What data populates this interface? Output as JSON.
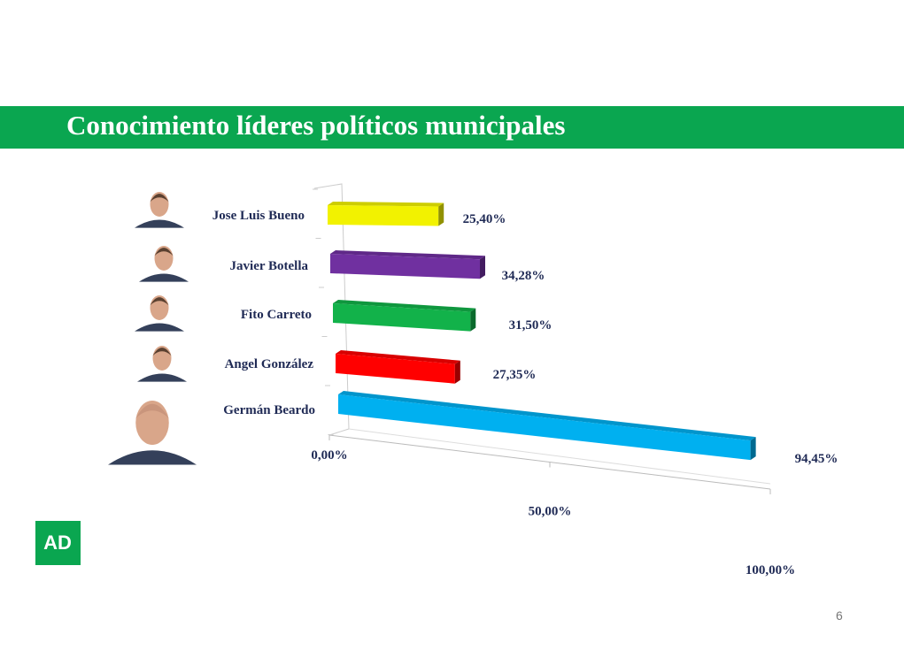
{
  "title": "Conocimiento líderes políticos municipales",
  "page_number": "6",
  "logo_text": "AD",
  "chart_data": {
    "type": "bar",
    "orientation": "horizontal-3d",
    "title": "Conocimiento líderes políticos municipales",
    "categories": [
      "Jose Luis Bueno",
      "Javier Botella",
      "Fito Carreto",
      "Angel González",
      "Germán Beardo"
    ],
    "values": [
      25.4,
      34.28,
      31.5,
      27.35,
      94.45
    ],
    "value_labels": [
      "25,40%",
      "34,28%",
      "31,50%",
      "27,35%",
      "94,45%"
    ],
    "colors": [
      "#f2f200",
      "#7030a0",
      "#12b24a",
      "#ff0000",
      "#00b0f0"
    ],
    "xlim": [
      0,
      100
    ],
    "xticks": [
      "0,00%",
      "50,00%",
      "100,00%"
    ],
    "xlabel": "",
    "ylabel": "",
    "legend": "none"
  }
}
